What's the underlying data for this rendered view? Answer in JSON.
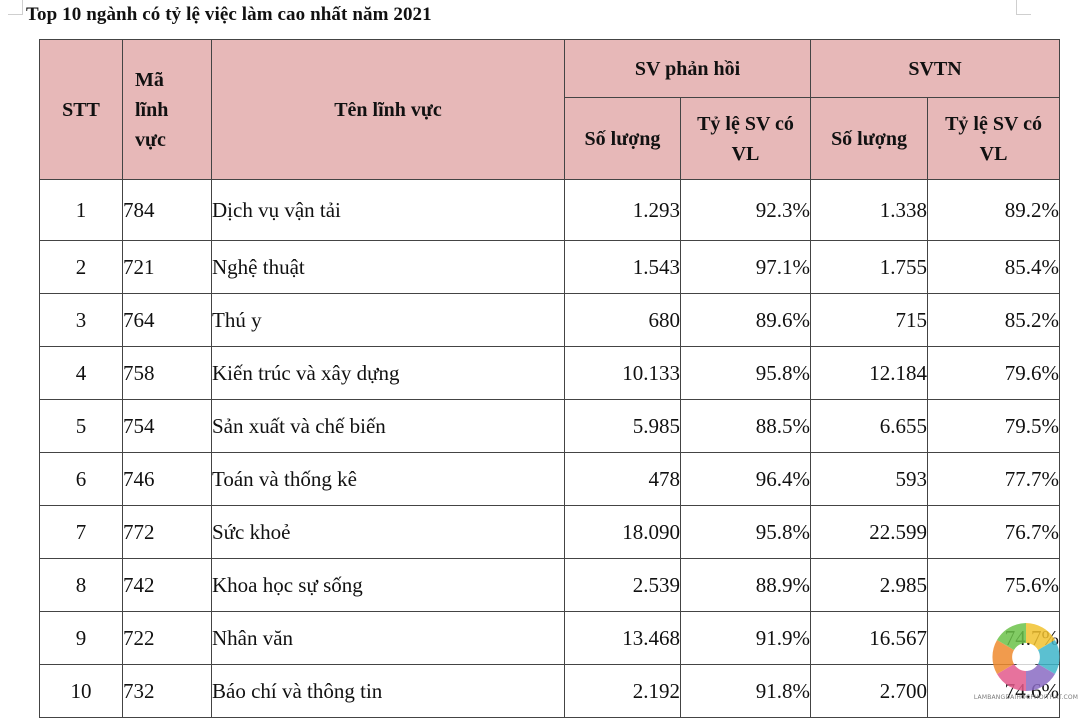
{
  "title": "Top 10 ngành có tỷ lệ việc làm cao nhất năm 2021",
  "headers": {
    "stt": "STT",
    "ma_linh_vuc": [
      "Mã",
      "lĩnh",
      "vực"
    ],
    "ten_linh_vuc": "Tên lĩnh vực",
    "sv_phan_hoi": "SV phản hồi",
    "svtn": "SVTN",
    "so_luong": "Số lượng",
    "ty_le": [
      "Tỷ lệ SV có",
      "VL"
    ]
  },
  "rows": [
    {
      "stt": "1",
      "ma": "784",
      "ten": "Dịch vụ vận tải",
      "ph_sl": "1.293",
      "ph_tl": "92.3%",
      "tn_sl": "1.338",
      "tn_tl": "89.2%"
    },
    {
      "stt": "2",
      "ma": "721",
      "ten": "Nghệ thuật",
      "ph_sl": "1.543",
      "ph_tl": "97.1%",
      "tn_sl": "1.755",
      "tn_tl": "85.4%"
    },
    {
      "stt": "3",
      "ma": "764",
      "ten": "Thú y",
      "ph_sl": "680",
      "ph_tl": "89.6%",
      "tn_sl": "715",
      "tn_tl": "85.2%"
    },
    {
      "stt": "4",
      "ma": "758",
      "ten": "Kiến trúc và xây dựng",
      "ph_sl": "10.133",
      "ph_tl": "95.8%",
      "tn_sl": "12.184",
      "tn_tl": "79.6%"
    },
    {
      "stt": "5",
      "ma": "754",
      "ten": "Sản xuất và chế biến",
      "ph_sl": "5.985",
      "ph_tl": "88.5%",
      "tn_sl": "6.655",
      "tn_tl": "79.5%"
    },
    {
      "stt": "6",
      "ma": "746",
      "ten": "Toán và thống kê",
      "ph_sl": "478",
      "ph_tl": "96.4%",
      "tn_sl": "593",
      "tn_tl": "77.7%"
    },
    {
      "stt": "7",
      "ma": "772",
      "ten": "Sức khoẻ",
      "ph_sl": "18.090",
      "ph_tl": "95.8%",
      "tn_sl": "22.599",
      "tn_tl": "76.7%"
    },
    {
      "stt": "8",
      "ma": "742",
      "ten": "Khoa học sự sống",
      "ph_sl": "2.539",
      "ph_tl": "88.9%",
      "tn_sl": "2.985",
      "tn_tl": "75.6%"
    },
    {
      "stt": "9",
      "ma": "722",
      "ten": "Nhân văn",
      "ph_sl": "13.468",
      "ph_tl": "91.9%",
      "tn_sl": "16.567",
      "tn_tl": "74.7%"
    },
    {
      "stt": "10",
      "ma": "732",
      "ten": "Báo chí và thông tin",
      "ph_sl": "2.192",
      "ph_tl": "91.8%",
      "tn_sl": "2.700",
      "tn_tl": "74.6%"
    }
  ],
  "watermark": {
    "text": "LAMBANGDAIHOCPHOITHAT.COM",
    "icon": "circular-swirl-logo"
  },
  "colors": {
    "header_bg": "#e7b8b8",
    "border": "#444444"
  }
}
